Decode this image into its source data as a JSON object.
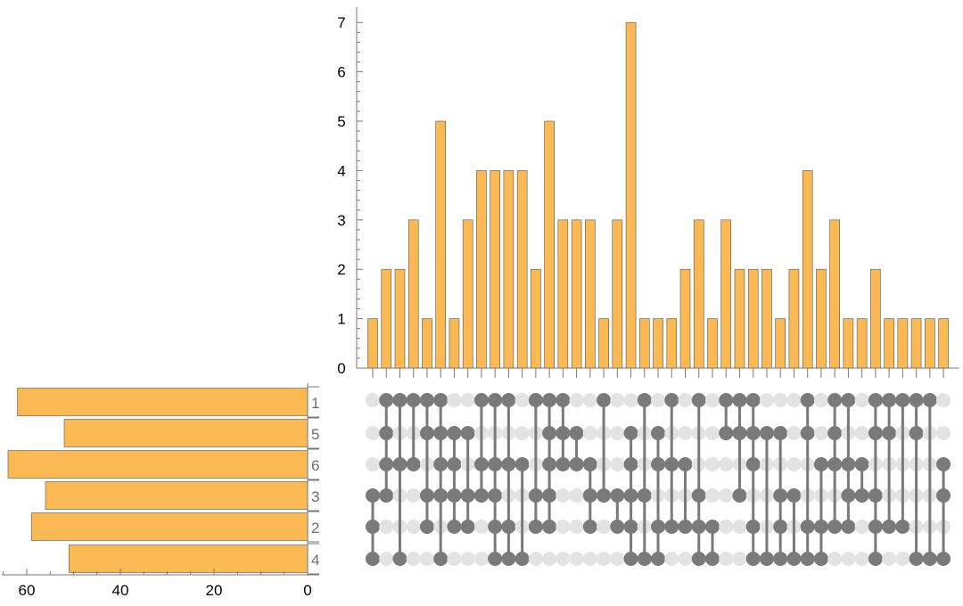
{
  "chart_data": {
    "type": "upset",
    "colors": {
      "bar": "#fbb954",
      "bar_edge": "#555555",
      "dot_on": "#7a7a7a",
      "dot_off": "#e3e3e3",
      "axis": "#777777"
    },
    "set_names": [
      "1",
      "5",
      "6",
      "3",
      "2",
      "4"
    ],
    "set_sizes": [
      62,
      52,
      64,
      56,
      59,
      51
    ],
    "set_size_axis": {
      "ticks": [
        "60",
        "40",
        "20",
        "0"
      ],
      "tick_values": [
        60,
        40,
        20,
        0
      ],
      "xlim": [
        66,
        0
      ]
    },
    "intersection_axis": {
      "ticks": [
        "0",
        "1",
        "2",
        "3",
        "4",
        "5",
        "6",
        "7"
      ],
      "ylim": [
        0,
        7.2
      ]
    },
    "intersection_sizes": [
      1,
      2,
      2,
      3,
      1,
      5,
      1,
      3,
      4,
      4,
      4,
      4,
      2,
      5,
      3,
      3,
      3,
      1,
      3,
      7,
      1,
      1,
      1,
      2,
      3,
      1,
      3,
      2,
      2,
      2,
      1,
      2,
      4,
      2,
      3,
      1,
      1,
      2,
      1,
      1,
      1,
      1,
      1
    ],
    "intersections": [
      [
        "3",
        "2",
        "4"
      ],
      [
        "1",
        "5",
        "6",
        "3"
      ],
      [
        "1",
        "6",
        "4"
      ],
      [
        "1",
        "6"
      ],
      [
        "1",
        "5",
        "3",
        "2"
      ],
      [
        "1",
        "5",
        "6",
        "3",
        "4"
      ],
      [
        "5",
        "6",
        "3",
        "2"
      ],
      [
        "5",
        "3",
        "2"
      ],
      [
        "1",
        "6",
        "3"
      ],
      [
        "1",
        "6",
        "3",
        "2",
        "4"
      ],
      [
        "1",
        "6",
        "2",
        "4"
      ],
      [
        "6",
        "4"
      ],
      [
        "1",
        "3",
        "2"
      ],
      [
        "1",
        "5",
        "6",
        "3",
        "2"
      ],
      [
        "1",
        "5",
        "6"
      ],
      [
        "5",
        "6"
      ],
      [
        "6",
        "3",
        "2"
      ],
      [
        "1",
        "3"
      ],
      [
        "3",
        "2"
      ],
      [
        "5",
        "6",
        "3",
        "2",
        "4"
      ],
      [
        "1",
        "3",
        "4"
      ],
      [
        "5",
        "6",
        "2",
        "4"
      ],
      [
        "1",
        "6",
        "2"
      ],
      [
        "6",
        "2"
      ],
      [
        "1",
        "3",
        "2",
        "4"
      ],
      [
        "2",
        "4"
      ],
      [
        "1",
        "5"
      ],
      [
        "1",
        "5",
        "3"
      ],
      [
        "1",
        "5",
        "6",
        "2",
        "4"
      ],
      [
        "5",
        "4"
      ],
      [
        "5",
        "3",
        "2",
        "4"
      ],
      [
        "3",
        "4"
      ],
      [
        "1",
        "5",
        "2",
        "4"
      ],
      [
        "6",
        "2",
        "4"
      ],
      [
        "1",
        "5",
        "6",
        "2"
      ],
      [
        "1",
        "6",
        "3",
        "2"
      ],
      [
        "6",
        "3"
      ],
      [
        "1",
        "5",
        "3",
        "2",
        "4"
      ],
      [
        "1",
        "5",
        "2"
      ],
      [
        "1",
        "2"
      ],
      [
        "1",
        "5",
        "4"
      ],
      [
        "1",
        "4"
      ],
      [
        "6",
        "3",
        "4"
      ]
    ]
  }
}
